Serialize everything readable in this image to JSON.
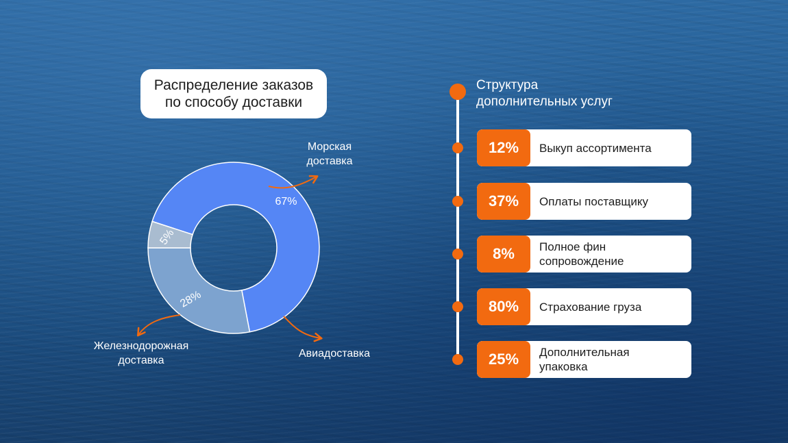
{
  "chart_data": {
    "type": "pie",
    "donut": true,
    "title": "Распределение заказов\nпо способу доставки",
    "categories": [
      "Морская\nдоставка",
      "Авиадоставка",
      "Железнодорожная\nдоставка"
    ],
    "values": [
      67,
      28,
      5
    ],
    "value_labels": [
      "67%",
      "28%",
      "5%"
    ],
    "colors": [
      "#5586f5",
      "#7da3cf",
      "#a9bcd0"
    ],
    "start_angle_deg": 72,
    "legend": "none"
  },
  "services": {
    "title": "Структура\nдополнительных услуг",
    "accent_color": "#f26a10",
    "items": [
      {
        "percent": "12%",
        "label": "Выкуп ассортимента"
      },
      {
        "percent": "37%",
        "label": "Оплаты поставщику"
      },
      {
        "percent": "8%",
        "label": "Полное фин\nсопровождение"
      },
      {
        "percent": "80%",
        "label": "Страхование груза"
      },
      {
        "percent": "25%",
        "label": "Дополнительная\nупаковка"
      }
    ]
  }
}
